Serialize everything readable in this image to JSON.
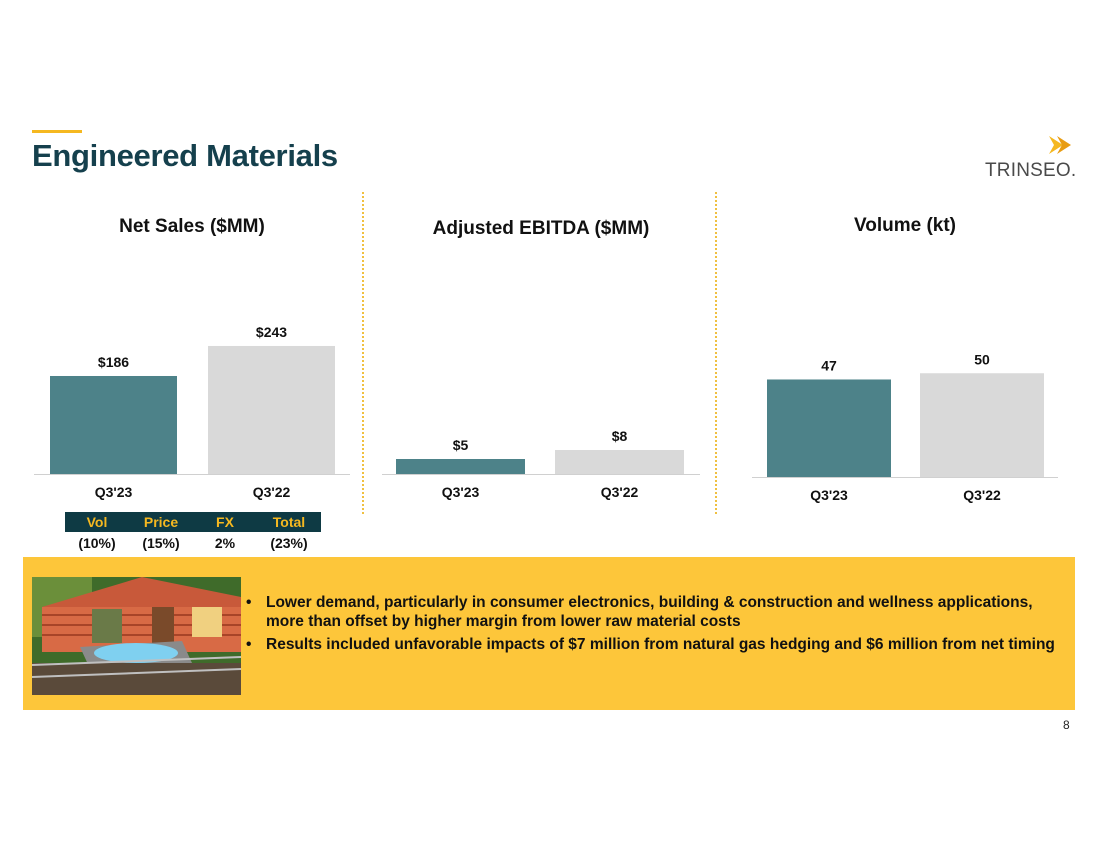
{
  "slide": {
    "title": "Engineered Materials",
    "page_number": "8",
    "accent_color": "#f5b820",
    "title_color": "#15404d"
  },
  "logo": {
    "text": "TRINSEO.",
    "icon": "trinseo-chevron-icon"
  },
  "bridge": {
    "headers": [
      "Vol",
      "Price",
      "FX",
      "Total"
    ],
    "values": [
      "(10%)",
      "(15%)",
      "2%",
      "(23%)"
    ]
  },
  "notes": {
    "image": "hot-tub-on-cabin-deck-photo",
    "bullets": [
      "Lower demand, particularly in consumer electronics, building & construction and wellness applications, more than offset by higher margin from lower raw material costs",
      "Results included unfavorable impacts of $7 million from natural gas hedging and $6 million from net timing"
    ]
  },
  "chart_data": [
    {
      "type": "bar",
      "title": "Net Sales ($MM)",
      "categories": [
        "Q3'23",
        "Q3'22"
      ],
      "values": [
        186,
        243
      ],
      "data_labels": [
        "$186",
        "$243"
      ],
      "colors": [
        "#4d8289",
        "#d9d9d9"
      ],
      "ylim": [
        0,
        260
      ],
      "grid": false,
      "legend": "none"
    },
    {
      "type": "bar",
      "title": "Adjusted EBITDA ($MM)",
      "categories": [
        "Q3'23",
        "Q3'22"
      ],
      "values": [
        5,
        8
      ],
      "data_labels": [
        "$5",
        "$8"
      ],
      "colors": [
        "#4d8289",
        "#d9d9d9"
      ],
      "ylim": [
        0,
        60
      ],
      "grid": false,
      "legend": "none"
    },
    {
      "type": "bar",
      "title": "Volume (kt)",
      "categories": [
        "Q3'23",
        "Q3'22"
      ],
      "values": [
        47,
        50
      ],
      "data_labels": [
        "47",
        "50"
      ],
      "colors": [
        "#4d8289",
        "#d9d9d9"
      ],
      "ylim": [
        0,
        80
      ],
      "grid": false,
      "legend": "none"
    }
  ]
}
